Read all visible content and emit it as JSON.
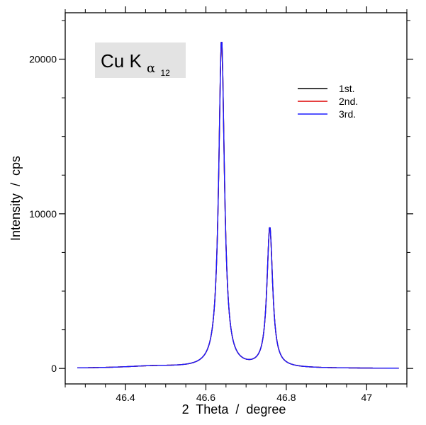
{
  "chart_data": {
    "type": "line",
    "annotation": {
      "main": "Cu  K",
      "sub": "α",
      "subsub": "12",
      "bg": "#e3e3e3"
    },
    "xlabel": "2  Theta  /  degree",
    "ylabel": "Intensity  /  cps",
    "xlim": [
      46.25,
      47.1
    ],
    "ylim": [
      -1000,
      23000
    ],
    "xticks": [
      46.4,
      46.6,
      46.8,
      47
    ],
    "xticklabels": [
      "46.4",
      "46.6",
      "46.8",
      "47"
    ],
    "xminor_step": 0.05,
    "yticks": [
      0,
      10000,
      20000
    ],
    "yticklabels": [
      "0",
      "10000",
      "20000"
    ],
    "yminor_step": 2500,
    "legend": {
      "placement": "top-right"
    },
    "profile": {
      "x_start": 46.28,
      "x_end": 47.08,
      "step": 0.002,
      "components": [
        {
          "center": 46.639,
          "height": 21300,
          "hwhm": 0.0085
        },
        {
          "center": 46.759,
          "height": 9100,
          "hwhm": 0.0085
        }
      ],
      "background": [
        {
          "center": 46.47,
          "height": 130,
          "hwhm": 0.09
        }
      ]
    },
    "series": [
      {
        "name": "1st.",
        "color": "#000000",
        "scale": 1.0
      },
      {
        "name": "2nd.",
        "color": "#dd0000",
        "scale": 1.0
      },
      {
        "name": "3rd.",
        "color": "#1a1aff",
        "scale": 1.0
      }
    ]
  }
}
